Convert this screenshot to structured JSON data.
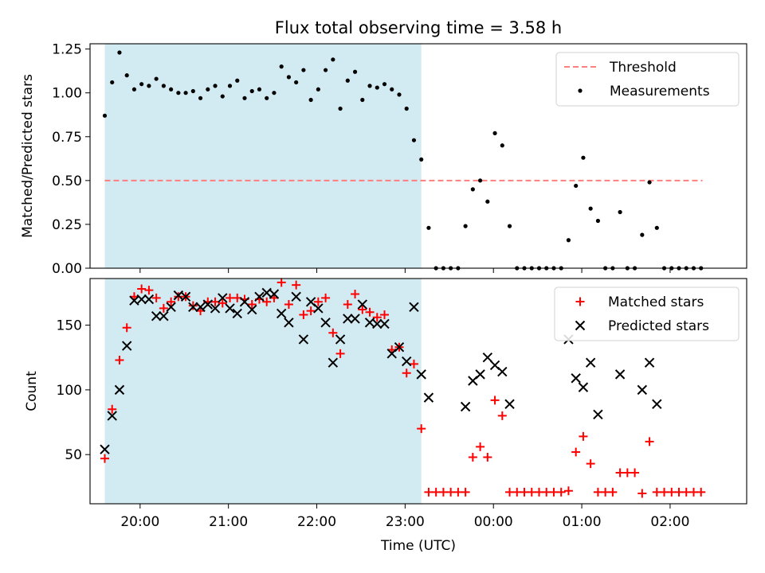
{
  "title": "Flux total observing time = 3.58 h",
  "colors": {
    "shade": "#add8e6",
    "threshold": "#ff7f7f",
    "measurement": "#000000",
    "matched": "#ff0000",
    "predicted": "#000000"
  },
  "chart_data": [
    {
      "type": "scatter",
      "ylabel": "Matched/Predicted stars",
      "ylim": [
        0,
        1.28
      ],
      "yticks": [
        0.0,
        0.25,
        0.5,
        0.75,
        1.0,
        1.25
      ],
      "ytick_labels": [
        "0.00",
        "0.25",
        "0.50",
        "0.75",
        "1.00",
        "1.25"
      ],
      "xlim": [
        "19:26",
        "02:52"
      ],
      "shaded_interval": [
        "19:36",
        "23:11"
      ],
      "legend": {
        "position": "upper right",
        "threshold_label": "Threshold",
        "measurements_label": "Measurements"
      },
      "threshold": {
        "value": 0.5,
        "x_start": "19:36",
        "x_end": "02:22"
      },
      "series": [
        {
          "name": "Measurements",
          "points": [
            [
              "19:36",
              0.87
            ],
            [
              "19:41",
              1.06
            ],
            [
              "19:46",
              1.23
            ],
            [
              "19:51",
              1.1
            ],
            [
              "19:56",
              1.02
            ],
            [
              "20:01",
              1.05
            ],
            [
              "20:06",
              1.04
            ],
            [
              "20:11",
              1.08
            ],
            [
              "20:16",
              1.04
            ],
            [
              "20:21",
              1.02
            ],
            [
              "20:26",
              1.0
            ],
            [
              "20:31",
              1.0
            ],
            [
              "20:36",
              1.01
            ],
            [
              "20:41",
              0.97
            ],
            [
              "20:46",
              1.02
            ],
            [
              "20:51",
              1.04
            ],
            [
              "20:56",
              0.98
            ],
            [
              "21:01",
              1.04
            ],
            [
              "21:06",
              1.07
            ],
            [
              "21:11",
              0.97
            ],
            [
              "21:16",
              1.01
            ],
            [
              "21:21",
              1.02
            ],
            [
              "21:26",
              0.97
            ],
            [
              "21:31",
              1.0
            ],
            [
              "21:36",
              1.15
            ],
            [
              "21:41",
              1.09
            ],
            [
              "21:46",
              1.06
            ],
            [
              "21:51",
              1.13
            ],
            [
              "21:56",
              0.96
            ],
            [
              "22:01",
              1.02
            ],
            [
              "22:06",
              1.13
            ],
            [
              "22:11",
              1.19
            ],
            [
              "22:16",
              0.91
            ],
            [
              "22:21",
              1.07
            ],
            [
              "22:26",
              1.12
            ],
            [
              "22:31",
              0.96
            ],
            [
              "22:36",
              1.04
            ],
            [
              "22:41",
              1.03
            ],
            [
              "22:46",
              1.05
            ],
            [
              "22:51",
              1.02
            ],
            [
              "22:56",
              0.99
            ],
            [
              "23:01",
              0.91
            ],
            [
              "23:06",
              0.73
            ],
            [
              "23:11",
              0.62
            ],
            [
              "23:16",
              0.23
            ],
            [
              "23:21",
              0.0
            ],
            [
              "23:26",
              0.0
            ],
            [
              "23:31",
              0.0
            ],
            [
              "23:36",
              0.0
            ],
            [
              "23:41",
              0.24
            ],
            [
              "23:46",
              0.45
            ],
            [
              "23:51",
              0.5
            ],
            [
              "23:56",
              0.38
            ],
            [
              "00:01",
              0.77
            ],
            [
              "00:06",
              0.7
            ],
            [
              "00:11",
              0.24
            ],
            [
              "00:16",
              0.0
            ],
            [
              "00:21",
              0.0
            ],
            [
              "00:26",
              0.0
            ],
            [
              "00:31",
              0.0
            ],
            [
              "00:36",
              0.0
            ],
            [
              "00:41",
              0.0
            ],
            [
              "00:46",
              0.0
            ],
            [
              "00:51",
              0.16
            ],
            [
              "00:56",
              0.47
            ],
            [
              "01:01",
              0.63
            ],
            [
              "01:06",
              0.34
            ],
            [
              "01:11",
              0.27
            ],
            [
              "01:16",
              0.0
            ],
            [
              "01:21",
              0.0
            ],
            [
              "01:26",
              0.32
            ],
            [
              "01:31",
              0.0
            ],
            [
              "01:36",
              0.0
            ],
            [
              "01:41",
              0.19
            ],
            [
              "01:46",
              0.49
            ],
            [
              "01:51",
              0.23
            ],
            [
              "01:56",
              0.0
            ],
            [
              "02:01",
              0.0
            ],
            [
              "02:06",
              0.0
            ],
            [
              "02:11",
              0.0
            ],
            [
              "02:16",
              0.0
            ],
            [
              "02:21",
              0.0
            ]
          ]
        }
      ]
    },
    {
      "type": "scatter",
      "ylabel": "Count",
      "xlabel": "Time (UTC)",
      "ylim": [
        12,
        186
      ],
      "yticks": [
        50,
        100,
        150
      ],
      "ytick_labels": [
        "50",
        "100",
        "150"
      ],
      "xlim": [
        "19:26",
        "02:52"
      ],
      "xticks": [
        "20:00",
        "21:00",
        "22:00",
        "23:00",
        "00:00",
        "01:00",
        "02:00"
      ],
      "shaded_interval": [
        "19:36",
        "23:11"
      ],
      "legend": {
        "position": "upper right"
      },
      "series": [
        {
          "name": "Matched stars",
          "points": [
            [
              "19:36",
              47
            ],
            [
              "19:41",
              85
            ],
            [
              "19:46",
              123
            ],
            [
              "19:51",
              148
            ],
            [
              "19:56",
              172
            ],
            [
              "20:01",
              178
            ],
            [
              "20:06",
              177
            ],
            [
              "20:11",
              171
            ],
            [
              "20:16",
              163
            ],
            [
              "20:21",
              168
            ],
            [
              "20:26",
              172
            ],
            [
              "20:31",
              172
            ],
            [
              "20:36",
              165
            ],
            [
              "20:41",
              161
            ],
            [
              "20:46",
              168
            ],
            [
              "20:51",
              168
            ],
            [
              "20:56",
              167
            ],
            [
              "21:01",
              171
            ],
            [
              "21:06",
              171
            ],
            [
              "21:11",
              170
            ],
            [
              "21:16",
              166
            ],
            [
              "21:21",
              170
            ],
            [
              "21:26",
              168
            ],
            [
              "21:31",
              171
            ],
            [
              "21:36",
              183
            ],
            [
              "21:41",
              166
            ],
            [
              "21:46",
              181
            ],
            [
              "21:51",
              158
            ],
            [
              "21:56",
              161
            ],
            [
              "22:01",
              168
            ],
            [
              "22:06",
              171
            ],
            [
              "22:11",
              144
            ],
            [
              "22:16",
              128
            ],
            [
              "22:21",
              166
            ],
            [
              "22:26",
              174
            ],
            [
              "22:31",
              162
            ],
            [
              "22:36",
              160
            ],
            [
              "22:41",
              156
            ],
            [
              "22:46",
              158
            ],
            [
              "22:51",
              131
            ],
            [
              "22:56",
              133
            ],
            [
              "23:01",
              113
            ],
            [
              "23:06",
              120
            ],
            [
              "23:11",
              70
            ],
            [
              "23:16",
              21
            ],
            [
              "23:21",
              21
            ],
            [
              "23:26",
              21
            ],
            [
              "23:31",
              21
            ],
            [
              "23:36",
              21
            ],
            [
              "23:41",
              21
            ],
            [
              "23:46",
              48
            ],
            [
              "23:51",
              56
            ],
            [
              "23:56",
              48
            ],
            [
              "00:01",
              92
            ],
            [
              "00:06",
              80
            ],
            [
              "00:11",
              21
            ],
            [
              "00:16",
              21
            ],
            [
              "00:21",
              21
            ],
            [
              "00:26",
              21
            ],
            [
              "00:31",
              21
            ],
            [
              "00:36",
              21
            ],
            [
              "00:41",
              21
            ],
            [
              "00:46",
              21
            ],
            [
              "00:51",
              22
            ],
            [
              "00:56",
              52
            ],
            [
              "01:01",
              64
            ],
            [
              "01:06",
              43
            ],
            [
              "01:11",
              21
            ],
            [
              "01:16",
              21
            ],
            [
              "01:21",
              21
            ],
            [
              "01:26",
              36
            ],
            [
              "01:31",
              36
            ],
            [
              "01:36",
              36
            ],
            [
              "01:41",
              20
            ],
            [
              "01:46",
              60
            ],
            [
              "01:51",
              21
            ],
            [
              "01:56",
              21
            ],
            [
              "02:01",
              21
            ],
            [
              "02:06",
              21
            ],
            [
              "02:11",
              21
            ],
            [
              "02:16",
              21
            ],
            [
              "02:21",
              21
            ]
          ]
        },
        {
          "name": "Predicted stars",
          "points": [
            [
              "19:36",
              54
            ],
            [
              "19:41",
              80
            ],
            [
              "19:46",
              100
            ],
            [
              "19:51",
              134
            ],
            [
              "19:56",
              169
            ],
            [
              "20:01",
              170
            ],
            [
              "20:06",
              170
            ],
            [
              "20:11",
              157
            ],
            [
              "20:16",
              157
            ],
            [
              "20:21",
              164
            ],
            [
              "20:26",
              173
            ],
            [
              "20:31",
              172
            ],
            [
              "20:36",
              164
            ],
            [
              "20:41",
              164
            ],
            [
              "20:46",
              166
            ],
            [
              "20:51",
              163
            ],
            [
              "20:56",
              171
            ],
            [
              "21:01",
              163
            ],
            [
              "21:06",
              159
            ],
            [
              "21:11",
              168
            ],
            [
              "21:16",
              162
            ],
            [
              "21:21",
              172
            ],
            [
              "21:26",
              175
            ],
            [
              "21:31",
              174
            ],
            [
              "21:36",
              159
            ],
            [
              "21:41",
              152
            ],
            [
              "21:46",
              172
            ],
            [
              "21:51",
              139
            ],
            [
              "21:56",
              168
            ],
            [
              "22:01",
              163
            ],
            [
              "22:06",
              152
            ],
            [
              "22:11",
              121
            ],
            [
              "22:16",
              139
            ],
            [
              "22:21",
              155
            ],
            [
              "22:26",
              155
            ],
            [
              "22:31",
              166
            ],
            [
              "22:36",
              152
            ],
            [
              "22:41",
              151
            ],
            [
              "22:46",
              151
            ],
            [
              "22:51",
              128
            ],
            [
              "22:56",
              133
            ],
            [
              "23:01",
              122
            ],
            [
              "23:06",
              164
            ],
            [
              "23:11",
              112
            ],
            [
              "23:16",
              94
            ],
            [
              "23:41",
              87
            ],
            [
              "23:46",
              107
            ],
            [
              "23:51",
              112
            ],
            [
              "23:56",
              125
            ],
            [
              "00:01",
              119
            ],
            [
              "00:06",
              114
            ],
            [
              "00:11",
              89
            ],
            [
              "00:51",
              139
            ],
            [
              "00:56",
              109
            ],
            [
              "01:01",
              102
            ],
            [
              "01:06",
              121
            ],
            [
              "01:11",
              81
            ],
            [
              "01:26",
              112
            ],
            [
              "01:41",
              100
            ],
            [
              "01:46",
              121
            ],
            [
              "01:51",
              89
            ]
          ]
        }
      ]
    }
  ]
}
